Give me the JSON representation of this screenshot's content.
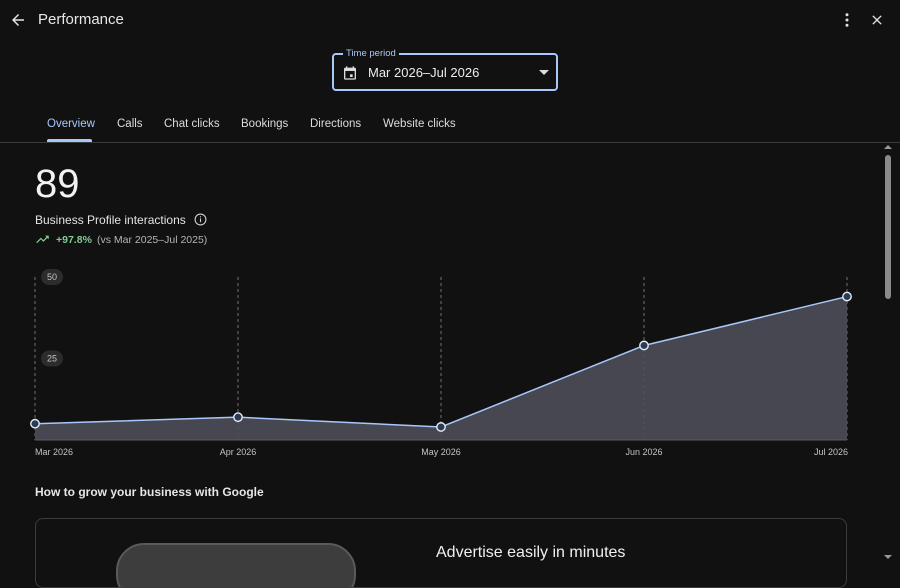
{
  "header": {
    "title": "Performance",
    "icons": {
      "back": "arrow-back-icon",
      "more": "more-vert-icon",
      "close": "close-icon"
    }
  },
  "time_period": {
    "label": "Time period",
    "value": "Mar 2026–Jul 2026"
  },
  "tabs": [
    {
      "label": "Overview",
      "active": true
    },
    {
      "label": "Calls"
    },
    {
      "label": "Chat clicks"
    },
    {
      "label": "Bookings"
    },
    {
      "label": "Directions"
    },
    {
      "label": "Website clicks"
    }
  ],
  "summary": {
    "total": "89",
    "metric_label": "Business Profile interactions",
    "change": "+97.8%",
    "comparison": "(vs Mar 2025–Jul 2025)"
  },
  "chart_data": {
    "type": "area",
    "x": [
      "Mar 2026",
      "Apr 2026",
      "May 2026",
      "Jun 2026",
      "Jul 2026"
    ],
    "y": [
      5,
      7,
      4,
      29,
      44
    ],
    "yticks": [
      25,
      50
    ],
    "ylim": [
      0,
      50
    ],
    "grid": "vertical-dashed",
    "colors": {
      "line": "#a8c7fa",
      "fill": "#4c4e58",
      "point": "#2b3a55"
    }
  },
  "section": {
    "title": "How to grow your business with Google",
    "promo_title": "Advertise easily in minutes"
  },
  "colors": {
    "accent": "#a8c7fa",
    "positive": "#81c995",
    "background": "#111111"
  }
}
